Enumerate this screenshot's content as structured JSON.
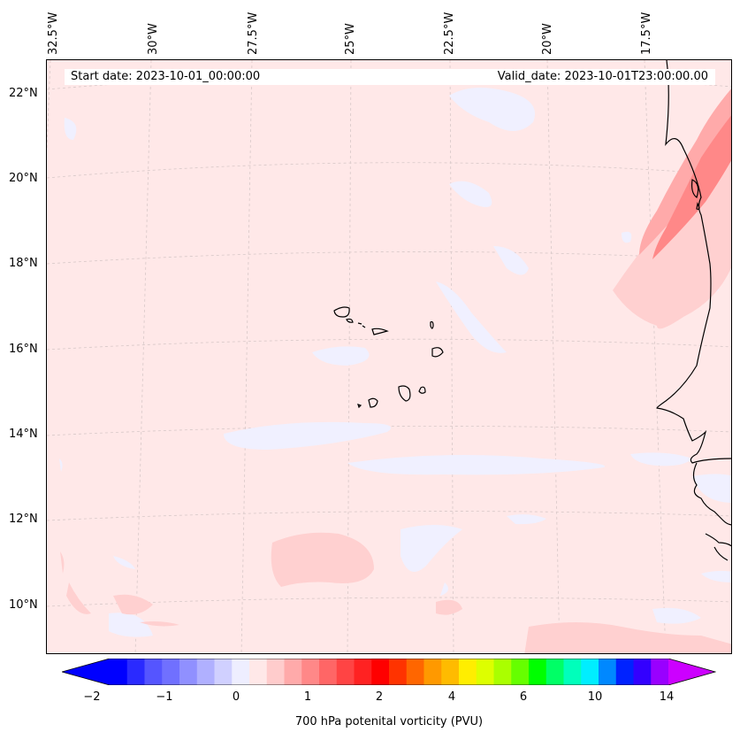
{
  "map": {
    "longitude_labels": [
      "32.5°W",
      "30°W",
      "27.5°W",
      "25°W",
      "22.5°W",
      "20°W",
      "17.5°W"
    ],
    "latitude_labels": [
      "22°N",
      "20°N",
      "18°N",
      "16°N",
      "14°N",
      "12°N",
      "10°N"
    ],
    "start_date": "Start date: 2023-10-01_00:00:00",
    "valid_date": "Valid_date: 2023-10-01T23:00:00.00",
    "background_color": "#ffe8e8",
    "coastline_color": "#000000"
  },
  "colorbar": {
    "title": "700 hPa potenital vorticity (PVU)",
    "tick_labels": [
      "−2",
      "−1",
      "0",
      "1",
      "2",
      "4",
      "6",
      "10",
      "14"
    ],
    "colors": [
      "#0000ff",
      "#2a2aff",
      "#5555ff",
      "#7070ff",
      "#9090ff",
      "#b0b0ff",
      "#d0d0ff",
      "#eeeeff",
      "#ffe8e8",
      "#ffcccc",
      "#ffaaaa",
      "#ff8888",
      "#ff6666",
      "#ff4444",
      "#ff2222",
      "#ff0000",
      "#ff3300",
      "#ff6600",
      "#ff9900",
      "#ffbb00",
      "#ffee00",
      "#ddff00",
      "#aaff00",
      "#66ff00",
      "#00ff00",
      "#00ff66",
      "#00ffbb",
      "#00eeff",
      "#0088ff",
      "#0022ff",
      "#3300ff",
      "#9900ff"
    ],
    "extend_low_color": "#0000ff",
    "extend_high_color": "#cc00ff"
  }
}
